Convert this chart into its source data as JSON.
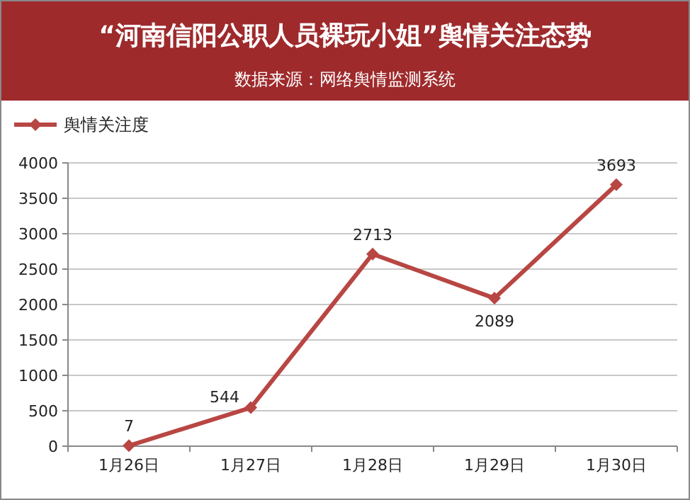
{
  "chart_data": {
    "type": "line",
    "title": "“河南信阳公职人员裸玩小姐”舆情关注态势",
    "subtitle": "数据来源：网络舆情监测系统",
    "categories": [
      "1月26日",
      "1月27日",
      "1月28日",
      "1月29日",
      "1月30日"
    ],
    "series": [
      {
        "name": "舆情关注度",
        "color": "#b84643",
        "values": [
          7,
          544,
          2713,
          2089,
          3693
        ]
      }
    ],
    "ylim": [
      0,
      4000
    ],
    "yticks": [
      0,
      500,
      1000,
      1500,
      2000,
      2500,
      3000,
      3500,
      4000
    ],
    "grid": "y",
    "legend": "top left",
    "marker": "diamond",
    "line_style": "solid",
    "data_labels": true
  }
}
